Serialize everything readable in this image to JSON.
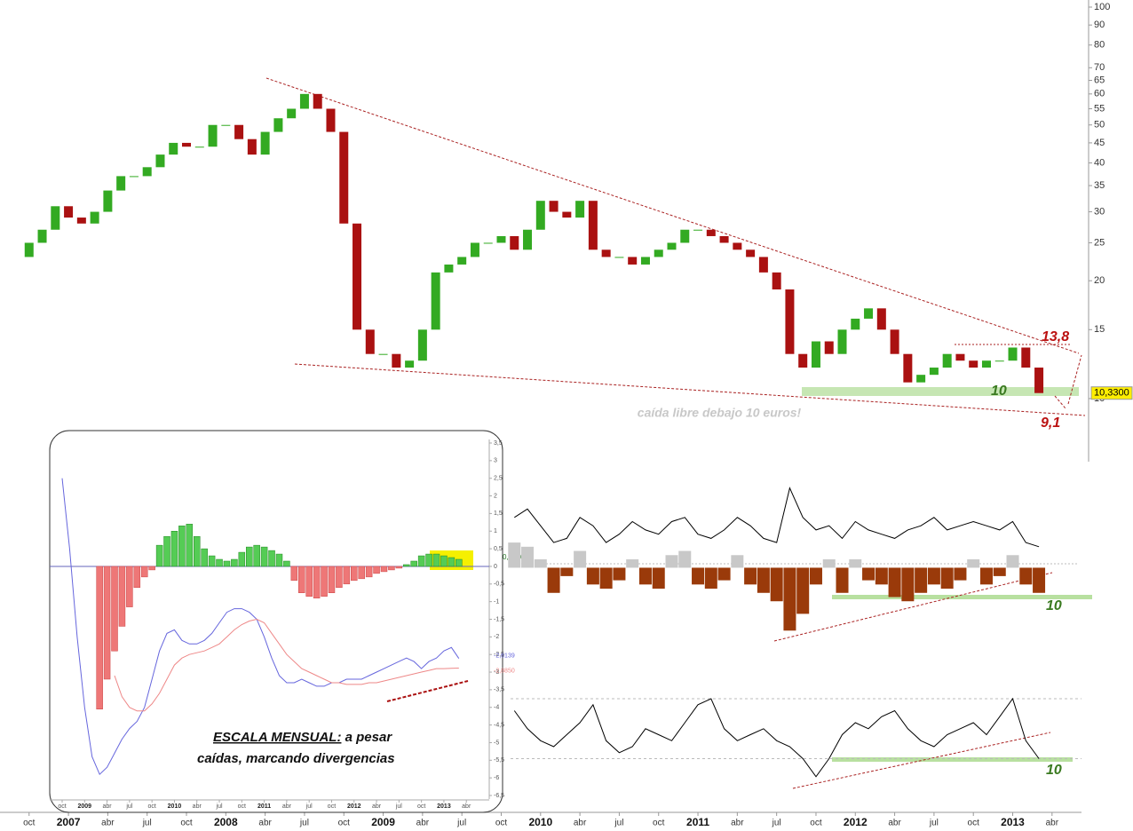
{
  "chart_data": [
    {
      "type": "candles",
      "series": [
        {
          "color_up": "#33aa22",
          "color_down": "#aa1111",
          "end_label": "10,3300",
          "values": [
            23,
            25,
            27,
            31,
            29,
            28,
            30,
            34,
            37,
            37,
            39,
            42,
            45,
            44,
            44,
            50,
            50,
            46,
            42,
            48,
            52,
            55,
            60,
            55,
            48,
            28,
            15,
            13,
            13,
            12,
            12.5,
            15,
            21,
            22,
            23,
            25,
            25,
            26,
            24,
            27,
            32,
            30,
            29,
            32,
            24,
            23,
            23,
            22,
            23,
            24,
            25,
            27,
            27,
            26,
            25,
            24,
            23,
            21,
            19,
            13,
            12,
            14,
            13,
            15,
            16,
            17,
            15,
            13,
            11,
            11.5,
            12,
            13,
            12.5,
            12,
            12.5,
            12.5,
            13.5,
            12,
            10.33
          ]
        }
      ],
      "log_scale": true,
      "ylim": [
        6.9,
        100
      ],
      "yticks": [
        100,
        90,
        80,
        70,
        65,
        60,
        55,
        50,
        45,
        40,
        35,
        30,
        25,
        20,
        15,
        10
      ],
      "xticks": [
        {
          "value": 1,
          "label": "oct"
        },
        {
          "value": 4,
          "label": "2007"
        },
        {
          "value": 7,
          "label": "abr"
        },
        {
          "value": 10,
          "label": "jul"
        },
        {
          "value": 13,
          "label": "oct"
        },
        {
          "value": 16,
          "label": "2008"
        },
        {
          "value": 19,
          "label": "abr"
        },
        {
          "value": 22,
          "label": "jul"
        },
        {
          "value": 25,
          "label": "oct"
        },
        {
          "value": 28,
          "label": "2009"
        },
        {
          "value": 31,
          "label": "abr"
        },
        {
          "value": 34,
          "label": "jul"
        },
        {
          "value": 37,
          "label": "oct"
        },
        {
          "value": 40,
          "label": "2010"
        },
        {
          "value": 43,
          "label": "abr"
        },
        {
          "value": 46,
          "label": "jul"
        },
        {
          "value": 49,
          "label": "oct"
        },
        {
          "value": 52,
          "label": "2011"
        },
        {
          "value": 55,
          "label": "abr"
        },
        {
          "value": 58,
          "label": "jul"
        },
        {
          "value": 61,
          "label": "oct"
        },
        {
          "value": 64,
          "label": "2012"
        },
        {
          "value": 67,
          "label": "abr"
        },
        {
          "value": 70,
          "label": "jul"
        },
        {
          "value": 73,
          "label": "oct"
        },
        {
          "value": 76,
          "label": "2013"
        },
        {
          "value": 79,
          "label": "abr"
        }
      ],
      "annotations": {
        "resistance": "13,8",
        "support": "10",
        "target": "9,1",
        "note": "caída libre debajo 10 euros!"
      }
    },
    {
      "type": "histogram-line",
      "ylim": [
        -0.8,
        1.0
      ],
      "label": "0,2716",
      "annotation": "10",
      "histogram": {
        "color_up": "#c8c8c8",
        "color_down": "#9a3a0a",
        "values": [
          null,
          null,
          null,
          null,
          null,
          null,
          null,
          null,
          null,
          null,
          null,
          null,
          null,
          null,
          null,
          null,
          null,
          null,
          null,
          null,
          null,
          null,
          null,
          null,
          null,
          null,
          null,
          null,
          null,
          null,
          null,
          null,
          null,
          null,
          null,
          null,
          null,
          null,
          0.3,
          0.25,
          0.1,
          -0.3,
          -0.1,
          0.2,
          -0.2,
          -0.25,
          -0.15,
          0.1,
          -0.2,
          -0.25,
          0.15,
          0.2,
          -0.2,
          -0.25,
          -0.15,
          0.15,
          -0.2,
          -0.3,
          -0.4,
          -0.75,
          -0.55,
          -0.2,
          0.1,
          -0.3,
          0.1,
          -0.15,
          -0.2,
          -0.35,
          -0.4,
          -0.3,
          -0.2,
          -0.25,
          -0.15,
          0.1,
          -0.2,
          -0.1,
          0.15,
          -0.2,
          -0.3
        ]
      },
      "line": {
        "color": "#000000",
        "values": [
          null,
          null,
          null,
          null,
          null,
          null,
          null,
          null,
          null,
          null,
          null,
          null,
          null,
          null,
          null,
          null,
          null,
          null,
          null,
          null,
          null,
          null,
          null,
          null,
          null,
          null,
          null,
          null,
          null,
          null,
          null,
          null,
          null,
          null,
          null,
          null,
          null,
          null,
          0.6,
          0.7,
          0.5,
          0.3,
          0.35,
          0.6,
          0.5,
          0.3,
          0.4,
          0.55,
          0.45,
          0.4,
          0.55,
          0.6,
          0.4,
          0.35,
          0.45,
          0.6,
          0.5,
          0.35,
          0.3,
          0.95,
          0.6,
          0.45,
          0.5,
          0.35,
          0.55,
          0.45,
          0.4,
          0.35,
          0.45,
          0.5,
          0.6,
          0.45,
          0.5,
          0.55,
          0.5,
          0.45,
          0.55,
          0.3,
          0.25
        ]
      }
    },
    {
      "type": "line",
      "ylim": [
        0,
        100
      ],
      "levels": [
        80,
        30
      ],
      "annotation": "10",
      "series": [
        {
          "color": "#000000",
          "values": [
            null,
            null,
            null,
            null,
            null,
            null,
            null,
            null,
            null,
            null,
            null,
            null,
            null,
            null,
            null,
            null,
            null,
            null,
            null,
            null,
            null,
            null,
            null,
            null,
            null,
            null,
            null,
            null,
            null,
            null,
            null,
            null,
            null,
            null,
            null,
            null,
            null,
            null,
            70,
            55,
            45,
            40,
            50,
            60,
            75,
            45,
            35,
            40,
            55,
            50,
            45,
            60,
            75,
            80,
            55,
            45,
            50,
            55,
            45,
            40,
            30,
            15,
            30,
            50,
            60,
            55,
            65,
            70,
            55,
            45,
            40,
            50,
            55,
            60,
            50,
            65,
            80,
            45,
            30
          ]
        }
      ]
    },
    {
      "type": "macd",
      "ylim": [
        -6.5,
        3.5
      ],
      "yticks": [
        {
          "value": 3.5,
          "label": "3,5"
        },
        3,
        {
          "value": 2.5,
          "label": "2,5"
        },
        2,
        {
          "value": 1.5,
          "label": "1,5"
        },
        1,
        {
          "value": 0.5,
          "label": "0,5"
        },
        0,
        {
          "value": -0.5,
          "label": "-0,5"
        },
        -1,
        {
          "value": -1.5,
          "label": "-1,5"
        },
        -2,
        {
          "value": -2.5,
          "label": "-2,5"
        },
        -3,
        {
          "value": -3.5,
          "label": "-3,5"
        },
        -4,
        {
          "value": -4.5,
          "label": "-4,5"
        },
        -5,
        {
          "value": -5.5,
          "label": "-5,5"
        },
        -6,
        {
          "value": -6.5,
          "label": "-6,5"
        }
      ],
      "xticks": [
        {
          "value": 0,
          "label": "oct"
        },
        {
          "value": 3,
          "label": "2009"
        },
        {
          "value": 6,
          "label": "abr"
        },
        {
          "value": 9,
          "label": "jul"
        },
        {
          "value": 12,
          "label": "oct"
        },
        {
          "value": 15,
          "label": "2010"
        },
        {
          "value": 18,
          "label": "abr"
        },
        {
          "value": 21,
          "label": "jul"
        },
        {
          "value": 24,
          "label": "oct"
        },
        {
          "value": 27,
          "label": "2011"
        },
        {
          "value": 30,
          "label": "abr"
        },
        {
          "value": 33,
          "label": "jul"
        },
        {
          "value": 36,
          "label": "oct"
        },
        {
          "value": 39,
          "label": "2012"
        },
        {
          "value": 42,
          "label": "abr"
        },
        {
          "value": 45,
          "label": "jul"
        },
        {
          "value": 48,
          "label": "oct"
        },
        {
          "value": 51,
          "label": "2013"
        },
        {
          "value": 54,
          "label": "abr"
        }
      ],
      "histogram": {
        "color_up": "#55cc55",
        "color_down": "#ee7777",
        "values": [
          null,
          null,
          null,
          null,
          null,
          -4.05,
          -3.2,
          -2.4,
          -1.7,
          -1.15,
          -0.6,
          -0.3,
          -0.1,
          0.6,
          0.85,
          1.0,
          1.15,
          1.2,
          0.85,
          0.5,
          0.3,
          0.2,
          0.15,
          0.2,
          0.4,
          0.55,
          0.6,
          0.55,
          0.45,
          0.35,
          0.15,
          -0.4,
          -0.75,
          -0.85,
          -0.9,
          -0.85,
          -0.75,
          -0.6,
          -0.5,
          -0.4,
          -0.35,
          -0.3,
          -0.2,
          -0.15,
          -0.1,
          -0.05,
          0.05,
          0.15,
          0.3,
          0.35,
          0.35,
          0.3,
          0.25,
          0.2
        ]
      },
      "series": [
        {
          "color": "#6666dd",
          "end_label": "-2,6139",
          "values": [
            2.5,
            0.5,
            -2,
            -4,
            -5.4,
            -5.9,
            -5.7,
            -5.3,
            -4.9,
            -4.6,
            -4.4,
            -4.0,
            -3.2,
            -2.4,
            -1.9,
            -1.8,
            -2.1,
            -2.2,
            -2.2,
            -2.1,
            -1.9,
            -1.6,
            -1.3,
            -1.2,
            -1.2,
            -1.3,
            -1.5,
            -2.0,
            -2.6,
            -3.1,
            -3.3,
            -3.3,
            -3.2,
            -3.3,
            -3.4,
            -3.4,
            -3.3,
            -3.3,
            -3.2,
            -3.2,
            -3.2,
            -3.1,
            -3.0,
            -2.9,
            -2.8,
            -2.7,
            -2.6,
            -2.7,
            -2.9,
            -2.7,
            -2.6,
            -2.4,
            -2.3,
            -2.6139
          ]
        },
        {
          "color": "#ee8888",
          "end_label": "-2,8850",
          "values": [
            null,
            null,
            null,
            null,
            null,
            null,
            null,
            -3.1,
            -3.7,
            -4.0,
            -4.1,
            -4.1,
            -3.9,
            -3.6,
            -3.2,
            -2.8,
            -2.6,
            -2.5,
            -2.45,
            -2.4,
            -2.3,
            -2.2,
            -2.0,
            -1.8,
            -1.65,
            -1.55,
            -1.5,
            -1.6,
            -1.9,
            -2.2,
            -2.5,
            -2.7,
            -2.9,
            -3.0,
            -3.1,
            -3.2,
            -3.3,
            -3.3,
            -3.35,
            -3.35,
            -3.35,
            -3.3,
            -3.3,
            -3.25,
            -3.2,
            -3.15,
            -3.1,
            -3.05,
            -3.0,
            -2.95,
            -2.9,
            -2.9,
            -2.89,
            -2.885
          ]
        }
      ],
      "note": {
        "underlined": "ESCALA MENSUAL:",
        "rest": "a pesar",
        "line2": "caídas, marcando divergencias"
      }
    }
  ]
}
